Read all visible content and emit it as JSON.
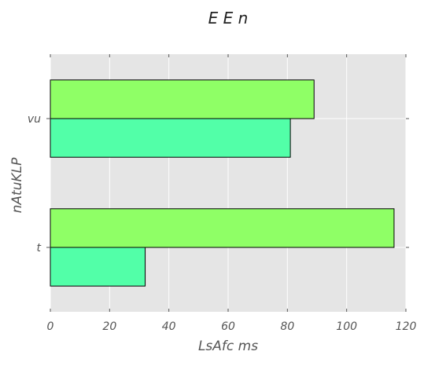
{
  "chart_data": {
    "type": "bar",
    "orientation": "horizontal",
    "title": "E E n",
    "xlabel": "LsAfc ms",
    "ylabel": "nAtuKLP",
    "categories": [
      "t",
      "vu"
    ],
    "series": [
      {
        "color": "#52ffa8",
        "values": [
          32,
          81
        ]
      },
      {
        "color": "#8fff66",
        "values": [
          116,
          89
        ]
      }
    ],
    "xlim": [
      0,
      120
    ],
    "xticks": [
      0,
      20,
      40,
      60,
      80,
      100,
      120
    ],
    "grid": true,
    "background": "#e5e5e5",
    "grid_color": "#ffffff"
  }
}
